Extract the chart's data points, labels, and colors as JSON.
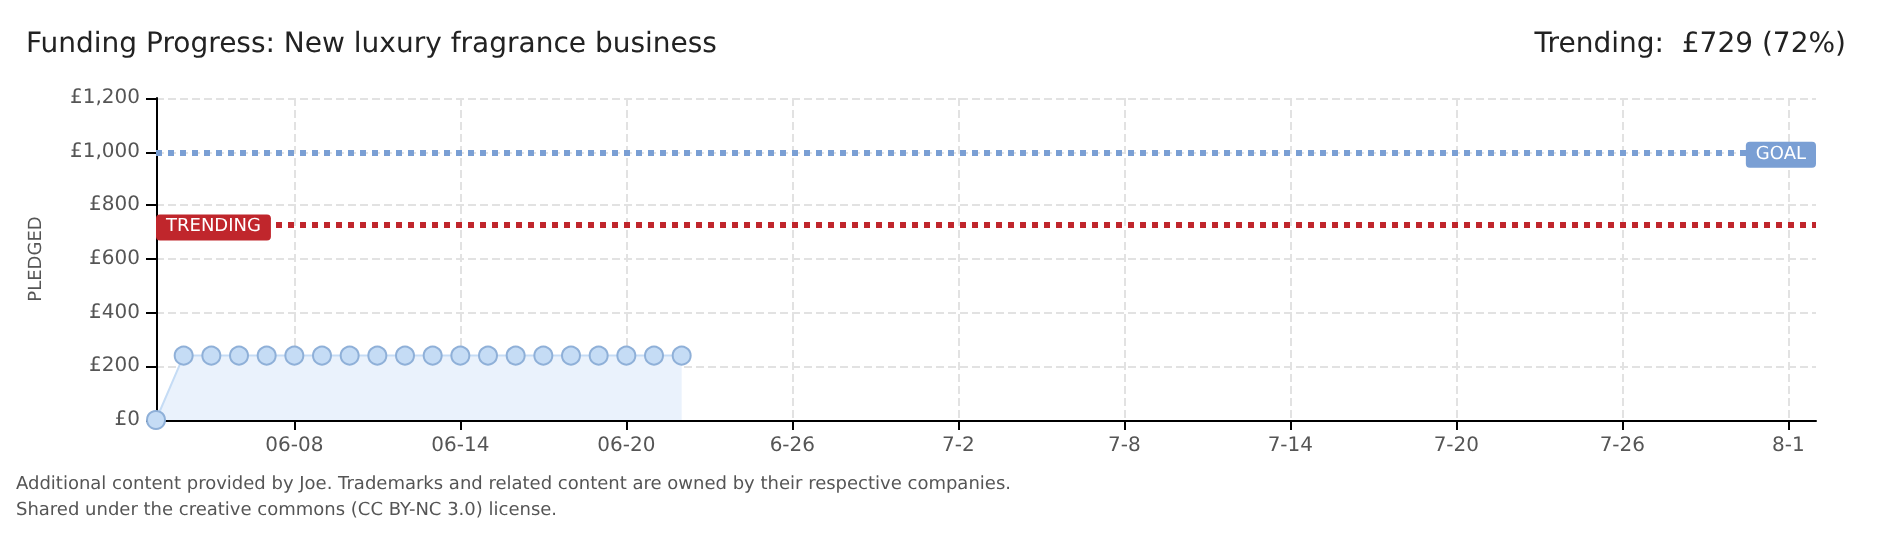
{
  "chart_data": {
    "type": "area",
    "title": "Funding Progress: New luxury fragrance business",
    "subtitle": "Trending:  £729 (72%)",
    "ylabel": "PLEDGED",
    "x": [
      "--06-03",
      "--06-04",
      "--06-05",
      "--06-06",
      "--06-07",
      "--06-08",
      "--06-09",
      "--06-10",
      "--06-11",
      "--06-12",
      "--06-13",
      "--06-14",
      "--06-15",
      "--06-16",
      "--06-17",
      "--06-18",
      "--06-19",
      "--06-20",
      "--06-21",
      "--06-22"
    ],
    "series": [
      {
        "color": "#c5dcf5",
        "values": [
          0,
          240,
          240,
          240,
          240,
          240,
          240,
          240,
          240,
          240,
          240,
          240,
          240,
          240,
          240,
          240,
          240,
          240,
          240,
          240
        ]
      }
    ],
    "xlim": [
      "--06-03",
      "--08-02"
    ],
    "xticks": [
      {
        "value": "--06-08",
        "label": "06-08"
      },
      {
        "value": "--06-14",
        "label": "06-14"
      },
      {
        "value": "--06-20",
        "label": "06-20"
      },
      {
        "value": "--06-26",
        "label": "6-26"
      },
      {
        "value": "--07-02",
        "label": "7-2"
      },
      {
        "value": "--07-08",
        "label": "7-8"
      },
      {
        "value": "--07-14",
        "label": "7-14"
      },
      {
        "value": "--07-20",
        "label": "7-20"
      },
      {
        "value": "--07-26",
        "label": "7-26"
      },
      {
        "value": "--08-01",
        "label": "8-1"
      }
    ],
    "ylim": [
      0,
      1200
    ],
    "yticks": [
      {
        "value": 0,
        "label": "£0"
      },
      {
        "value": 200,
        "label": "£200"
      },
      {
        "value": 400,
        "label": "£400"
      },
      {
        "value": 600,
        "label": "£600"
      },
      {
        "value": 800,
        "label": "£800"
      },
      {
        "value": 1000,
        "label": "£1,000"
      },
      {
        "value": 1200,
        "label": "£1,200"
      }
    ],
    "ref_lines": [
      {
        "axis": "y",
        "value": 1000,
        "label": "GOAL",
        "color": "#7a9fd4",
        "line_style": "dotted"
      },
      {
        "axis": "y",
        "value": 729,
        "label": "TRENDING",
        "color": "#c0262c",
        "line_style": "dotted"
      }
    ],
    "grid": true,
    "marker": "circle",
    "line_style": "solid",
    "annotations": [
      "Additional content provided by Joe. Trademarks and related content are owned by their respective companies.",
      "Shared under the creative commons (CC BY-NC 3.0) license."
    ]
  }
}
